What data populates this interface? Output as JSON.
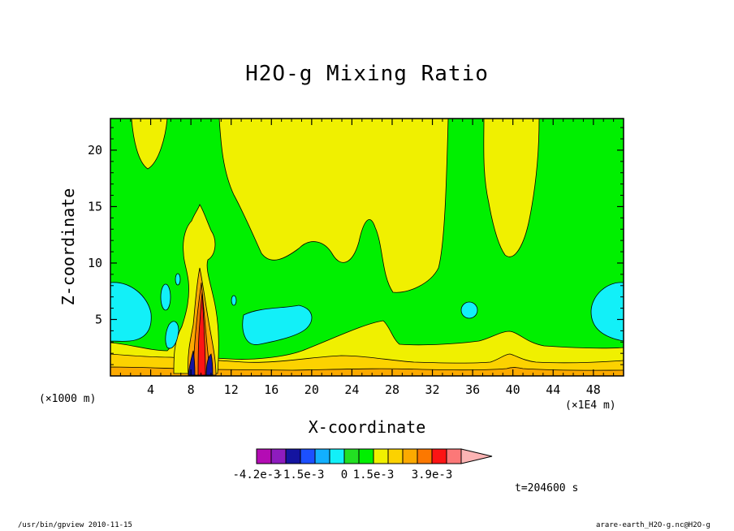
{
  "chart_data": {
    "type": "contour",
    "title": "H2O-g Mixing Ratio",
    "xlabel": "X-coordinate",
    "ylabel": "Z-coordinate",
    "x_unit_left": "(×1000 m)",
    "x_unit_right": "(×1E4 m)",
    "xlim": [
      0,
      51
    ],
    "ylim": [
      0,
      22.8
    ],
    "x_ticks": [
      4,
      8,
      12,
      16,
      20,
      24,
      28,
      32,
      36,
      40,
      44,
      48
    ],
    "y_ticks": [
      5,
      10,
      15,
      20
    ],
    "colorbar": {
      "colors": [
        "#b40cb4",
        "#8e1cbe",
        "#1414a0",
        "#1c50ff",
        "#12b0ff",
        "#12f0f8",
        "#22e022",
        "#00f000",
        "#f0f000",
        "#fcd200",
        "#fcaa00",
        "#fc7800",
        "#fc1414",
        "#fc7878",
        "#fcb4b4"
      ],
      "tick_labels": [
        "-4.2e-3",
        "-1.5e-3",
        "0",
        "1.5e-3",
        "3.9e-3"
      ]
    },
    "time_label": "t=204600 s",
    "grid": false
  },
  "footer": {
    "left": "/usr/bin/gpview  2010-11-15",
    "right": "arare-earth_H2O-g.nc@H2O-g"
  },
  "colors": {
    "green": "#00f000",
    "yellow": "#f0f000",
    "cyan": "#12f0f8",
    "gold": "#fcd200",
    "orange": "#fcaa00",
    "dark_orange": "#fc7800",
    "red": "#fc1414",
    "navy": "#1414a0"
  }
}
